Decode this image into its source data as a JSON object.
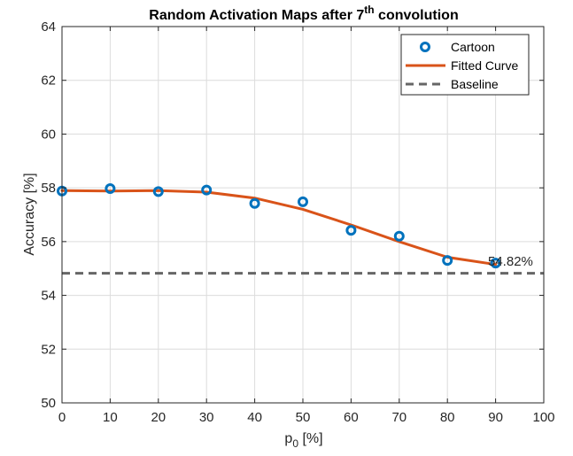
{
  "chart_data": {
    "type": "line",
    "title": "Random Activation Maps after 7",
    "title_sup": "th",
    "title_suffix": " convolution",
    "xlabel": "p",
    "xlabel_sub": "0",
    "xlabel_suffix": " [%]",
    "ylabel": "Accuracy [%]",
    "xlim": [
      0,
      100
    ],
    "ylim": [
      50,
      64
    ],
    "xticks": [
      0,
      10,
      20,
      30,
      40,
      50,
      60,
      70,
      80,
      90,
      100
    ],
    "yticks": [
      50,
      52,
      54,
      56,
      58,
      60,
      62,
      64
    ],
    "grid": true,
    "legend_position": "top-right",
    "series": [
      {
        "name": "Cartoon",
        "style": "markers",
        "color": "#0072BD",
        "x": [
          0,
          10,
          20,
          30,
          40,
          50,
          60,
          70,
          80,
          90
        ],
        "y": [
          57.88,
          57.97,
          57.86,
          57.92,
          57.42,
          57.48,
          56.42,
          56.2,
          55.3,
          55.2
        ]
      },
      {
        "name": "Fitted Curve",
        "style": "line",
        "color": "#D95319",
        "x": [
          0,
          10,
          20,
          30,
          40,
          50,
          60,
          70,
          80,
          90
        ],
        "y": [
          57.9,
          57.88,
          57.9,
          57.84,
          57.62,
          57.2,
          56.62,
          56.0,
          55.42,
          55.15
        ]
      },
      {
        "name": "Baseline",
        "style": "dashed",
        "color": "#666666",
        "x": [
          0,
          100
        ],
        "y": [
          54.82,
          54.82
        ]
      }
    ],
    "annotations": [
      {
        "text": "54.82%",
        "x": 90,
        "y": 54.82
      }
    ]
  }
}
